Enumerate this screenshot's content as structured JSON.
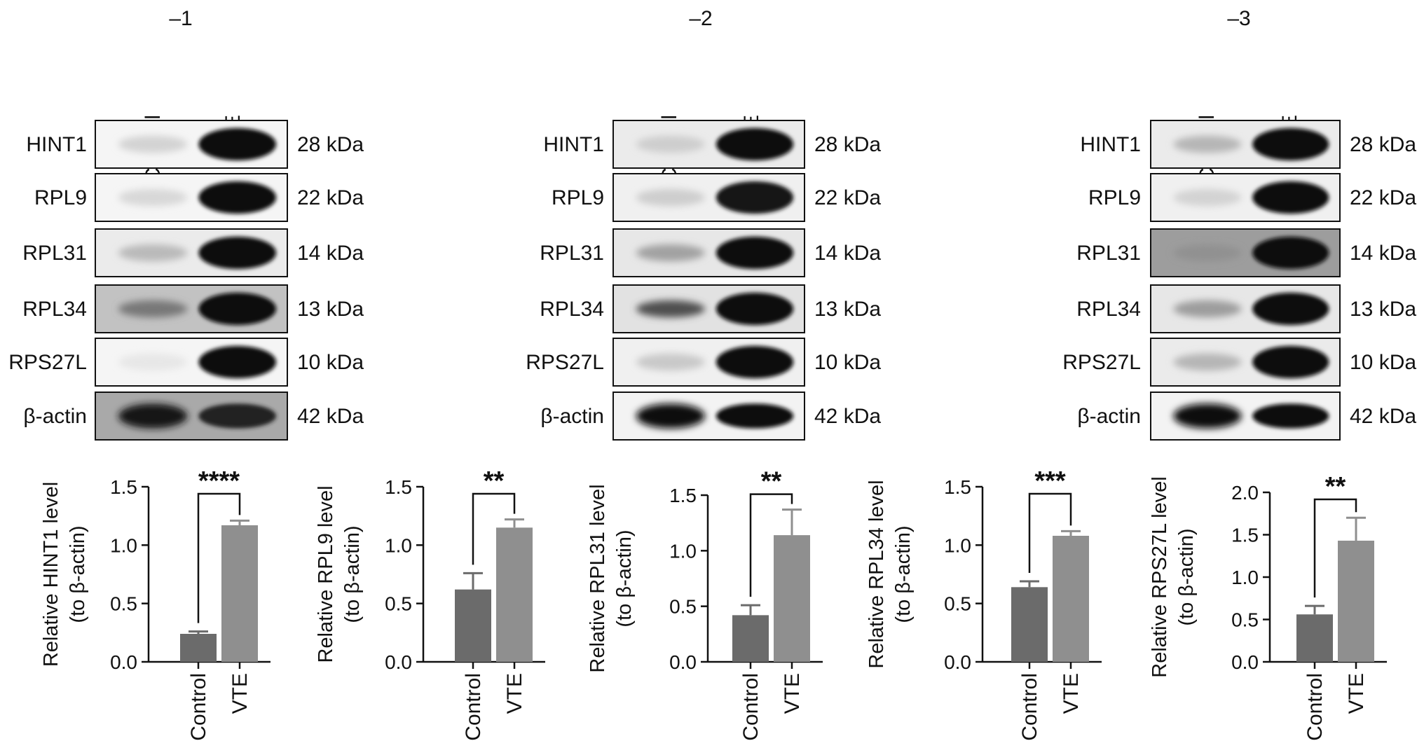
{
  "blots": [
    {
      "label": "–1",
      "lanes": [
        "Control",
        "VTE"
      ],
      "rows": [
        {
          "protein": "HINT1",
          "kda": "28 kDa"
        },
        {
          "protein": "RPL9",
          "kda": "22 kDa"
        },
        {
          "protein": "RPL31",
          "kda": "14 kDa"
        },
        {
          "protein": "RPL34",
          "kda": "13 kDa"
        },
        {
          "protein": "RPS27L",
          "kda": "10 kDa"
        },
        {
          "protein": "β-actin",
          "kda": "42 kDa"
        }
      ]
    },
    {
      "label": "–2",
      "lanes": [
        "Control",
        "VTE"
      ],
      "rows": [
        {
          "protein": "HINT1",
          "kda": "28 kDa"
        },
        {
          "protein": "RPL9",
          "kda": "22 kDa"
        },
        {
          "protein": "RPL31",
          "kda": "14 kDa"
        },
        {
          "protein": "RPL34",
          "kda": "13 kDa"
        },
        {
          "protein": "RPS27L",
          "kda": "10 kDa"
        },
        {
          "protein": "β-actin",
          "kda": "42 kDa"
        }
      ]
    },
    {
      "label": "–3",
      "lanes": [
        "Control",
        "VTE"
      ],
      "rows": [
        {
          "protein": "HINT1",
          "kda": "28 kDa"
        },
        {
          "protein": "RPL9",
          "kda": "22 kDa"
        },
        {
          "protein": "RPL31",
          "kda": "14 kDa"
        },
        {
          "protein": "RPL34",
          "kda": "13 kDa"
        },
        {
          "protein": "RPS27L",
          "kda": "10 kDa"
        },
        {
          "protein": "β-actin",
          "kda": "42 kDa"
        }
      ]
    }
  ],
  "chart_data": [
    {
      "type": "bar",
      "categories": [
        "Control",
        "VTE"
      ],
      "values": [
        0.24,
        1.17
      ],
      "errors": [
        0.02,
        0.04
      ],
      "ylabel": [
        "Relative HINT1 level",
        "(to β-actin)"
      ],
      "ylim": [
        0,
        1.5
      ],
      "ticks": [
        "0.0",
        "0.5",
        "1.0",
        "1.5"
      ],
      "significance": "****",
      "colors": [
        "#6b6b6b",
        "#8f8f8f"
      ]
    },
    {
      "type": "bar",
      "categories": [
        "Control",
        "VTE"
      ],
      "values": [
        0.62,
        1.15
      ],
      "errors": [
        0.14,
        0.07
      ],
      "ylabel": [
        "Relative RPL9 level",
        "(to β-actin)"
      ],
      "ylim": [
        0,
        1.5
      ],
      "ticks": [
        "0.0",
        "0.5",
        "1.0",
        "1.5"
      ],
      "significance": "**",
      "colors": [
        "#6b6b6b",
        "#8f8f8f"
      ]
    },
    {
      "type": "bar",
      "categories": [
        "Control",
        "VTE"
      ],
      "values": [
        0.42,
        1.14
      ],
      "errors": [
        0.09,
        0.23
      ],
      "ylabel": [
        "Relative RPL31 level",
        "(to β-actin)"
      ],
      "ylim": [
        0,
        1.5
      ],
      "ticks": [
        "0.0",
        "0.5",
        "1.0",
        "1.5"
      ],
      "significance": "**",
      "colors": [
        "#6b6b6b",
        "#8f8f8f"
      ]
    },
    {
      "type": "bar",
      "categories": [
        "Control",
        "VTE"
      ],
      "values": [
        0.64,
        1.08
      ],
      "errors": [
        0.05,
        0.04
      ],
      "ylabel": [
        "Relative RPL34 level",
        "(to β-actin)"
      ],
      "ylim": [
        0,
        1.5
      ],
      "ticks": [
        "0.0",
        "0.5",
        "1.0",
        "1.5"
      ],
      "significance": "***",
      "colors": [
        "#6b6b6b",
        "#8f8f8f"
      ]
    },
    {
      "type": "bar",
      "categories": [
        "Control",
        "VTE"
      ],
      "values": [
        0.56,
        1.43
      ],
      "errors": [
        0.1,
        0.27
      ],
      "ylabel": [
        "Relative RPS27L level",
        "(to β-actin)"
      ],
      "ylim": [
        0,
        2.0
      ],
      "ticks": [
        "0.0",
        "0.5",
        "1.0",
        "1.5",
        "2.0"
      ],
      "significance": "**",
      "colors": [
        "#6b6b6b",
        "#8f8f8f"
      ]
    }
  ]
}
